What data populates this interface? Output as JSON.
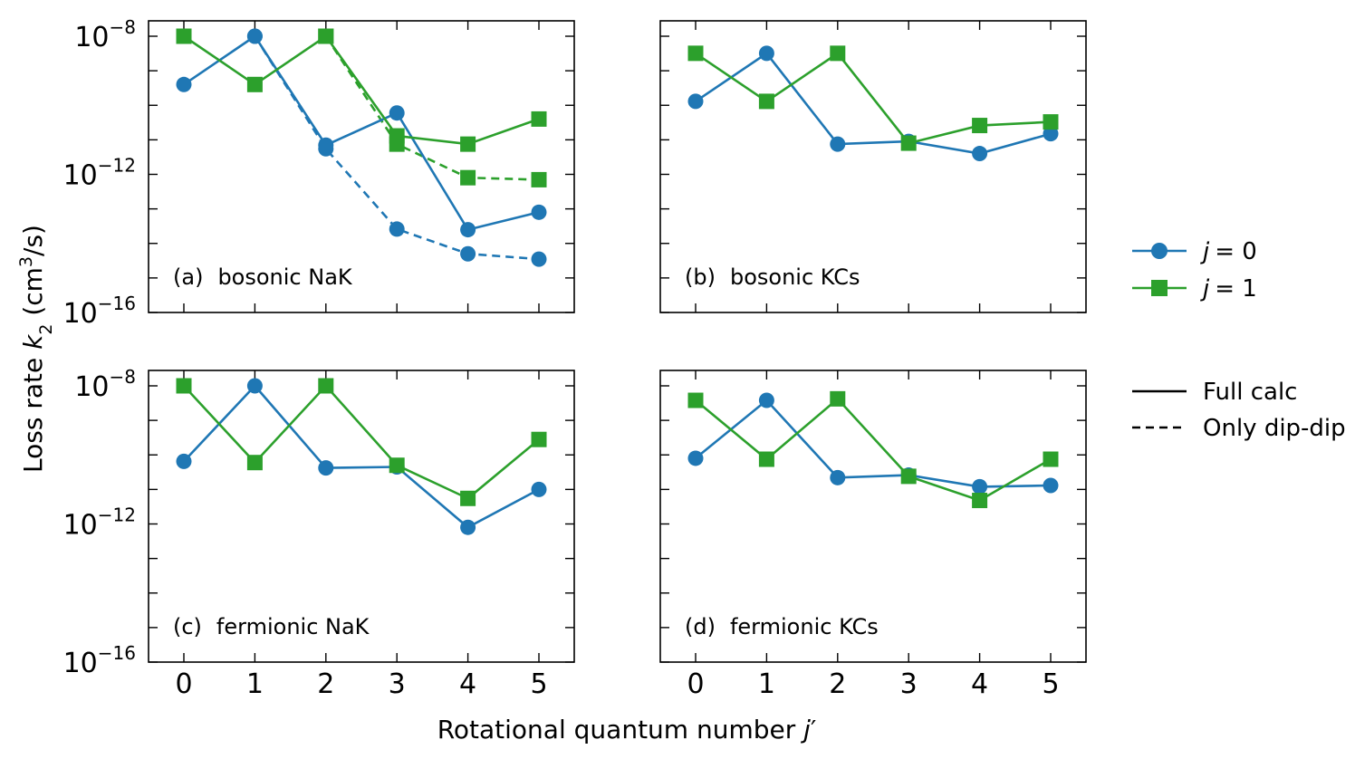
{
  "colors": {
    "j0": "#1f77b4",
    "j1": "#2ca02c"
  },
  "xlabel_text": "Rotational quantum number ",
  "xlabel_italic": "j",
  "xlabel_prime": "′",
  "ylabel_pre": "Loss rate ",
  "ylabel_k": "k",
  "ylabel_sub": "2",
  "ylabel_unit_pre": " (cm",
  "ylabel_sup": "3",
  "ylabel_unit_post": "/s)",
  "legend": {
    "j0_text": "= 0",
    "j1_text": "= 1",
    "j_symbol": "j",
    "solid": "Full calc",
    "dashed": "Only dip-dip"
  },
  "chart_data": [
    {
      "type": "line",
      "panel": "a",
      "tag": "(a)",
      "title": "bosonic NaK",
      "x": [
        0,
        1,
        2,
        3,
        4,
        5
      ],
      "ylog": true,
      "ylim": [
        1e-16,
        3e-08
      ],
      "yticks": [
        "10",
        "10",
        "10"
      ],
      "ytick_exps": [
        "−8",
        "−12",
        "−16"
      ],
      "series": [
        {
          "key": "j0",
          "style": "solid",
          "values": [
            4e-10,
            1e-08,
            7e-12,
            6e-11,
            2.5e-14,
            8e-14
          ]
        },
        {
          "key": "j1",
          "style": "solid",
          "values": [
            1e-08,
            4e-10,
            1e-08,
            1.3e-11,
            7.5e-12,
            4e-11
          ]
        },
        {
          "key": "j0",
          "style": "dashed",
          "values": [
            null,
            1e-08,
            5.5e-12,
            2.6e-14,
            5e-15,
            3.5e-15
          ]
        },
        {
          "key": "j1",
          "style": "dashed",
          "values": [
            null,
            null,
            1e-08,
            7.5e-12,
            8e-13,
            7e-13
          ]
        }
      ]
    },
    {
      "type": "line",
      "panel": "b",
      "tag": "(b)",
      "title": "bosonic KCs",
      "x": [
        0,
        1,
        2,
        3,
        4,
        5
      ],
      "ylog": true,
      "ylim": [
        1e-16,
        3e-08
      ],
      "series": [
        {
          "key": "j0",
          "style": "solid",
          "values": [
            1.3e-10,
            3.2e-09,
            7.5e-12,
            9e-12,
            4e-12,
            1.5e-11
          ]
        },
        {
          "key": "j1",
          "style": "solid",
          "values": [
            3.2e-09,
            1.3e-10,
            3.2e-09,
            8e-12,
            2.6e-11,
            3.3e-11
          ]
        }
      ]
    },
    {
      "type": "line",
      "panel": "c",
      "tag": "(c)",
      "title": "fermionic NaK",
      "x": [
        0,
        1,
        2,
        3,
        4,
        5
      ],
      "ylog": true,
      "ylim": [
        1e-16,
        3e-08
      ],
      "yticks": [
        "10",
        "10",
        "10"
      ],
      "ytick_exps": [
        "−8",
        "−12",
        "−16"
      ],
      "series": [
        {
          "key": "j0",
          "style": "solid",
          "values": [
            6.5e-11,
            1e-08,
            4.2e-11,
            4.5e-11,
            8e-13,
            1e-11
          ]
        },
        {
          "key": "j1",
          "style": "solid",
          "values": [
            1e-08,
            6e-11,
            1e-08,
            5e-11,
            5.5e-12,
            2.8e-10
          ]
        }
      ]
    },
    {
      "type": "line",
      "panel": "d",
      "tag": "(d)",
      "title": "fermionic KCs",
      "x": [
        0,
        1,
        2,
        3,
        4,
        5
      ],
      "ylog": true,
      "ylim": [
        1e-16,
        3e-08
      ],
      "series": [
        {
          "key": "j0",
          "style": "solid",
          "values": [
            8e-11,
            3.8e-09,
            2.2e-11,
            2.6e-11,
            1.2e-11,
            1.3e-11
          ]
        },
        {
          "key": "j1",
          "style": "solid",
          "values": [
            3.8e-09,
            7.5e-11,
            4.2e-09,
            2.4e-11,
            4.8e-12,
            7.5e-11
          ]
        }
      ]
    }
  ]
}
